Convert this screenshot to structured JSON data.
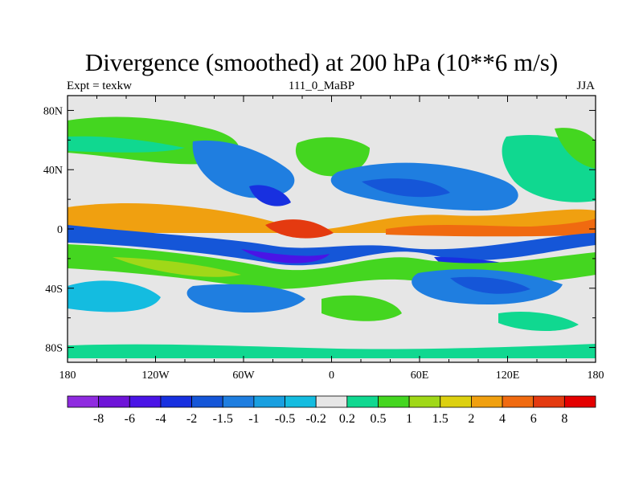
{
  "chart_data": {
    "type": "heatmap",
    "title": "Divergence (smoothed) at 200 hPa (10**6 m/s)",
    "subtitle_left": "Expt = texkw",
    "subtitle_center": "111_0_MaBP",
    "subtitle_right": "JJA",
    "x_ticks": [
      {
        "value": -180,
        "label": "180"
      },
      {
        "value": -120,
        "label": "120W"
      },
      {
        "value": -60,
        "label": "60W"
      },
      {
        "value": 0,
        "label": "0"
      },
      {
        "value": 60,
        "label": "60E"
      },
      {
        "value": 120,
        "label": "120E"
      },
      {
        "value": 180,
        "label": "180"
      }
    ],
    "y_ticks": [
      {
        "value": 80,
        "label": "80N"
      },
      {
        "value": 40,
        "label": "40N"
      },
      {
        "value": 0,
        "label": "0"
      },
      {
        "value": -40,
        "label": "40S"
      },
      {
        "value": -80,
        "label": "80S"
      }
    ],
    "xlim": [
      -180,
      180
    ],
    "ylim": [
      -90,
      90
    ],
    "colorbar": {
      "levels": [
        "-8",
        "-6",
        "-4",
        "-2",
        "-1.5",
        "-1",
        "-0.5",
        "-0.2",
        "0.2",
        "0.5",
        "1",
        "1.5",
        "2",
        "4",
        "6",
        "8"
      ],
      "colors": [
        "#8f2be0",
        "#6e14d8",
        "#4a14e6",
        "#1830e0",
        "#1556d8",
        "#1f7ee0",
        "#199fe0",
        "#14bce0",
        "#e6e6e6",
        "#10d890",
        "#44d620",
        "#a0d818",
        "#dcd010",
        "#f0a010",
        "#f06a10",
        "#e43a10",
        "#e40000"
      ]
    }
  }
}
